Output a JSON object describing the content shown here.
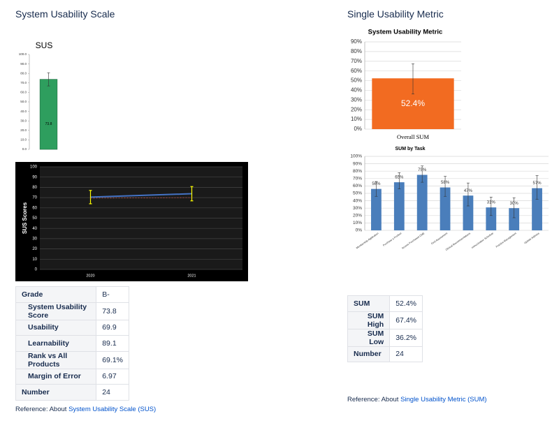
{
  "left": {
    "heading": "System Usability Scale",
    "table": {
      "rows": [
        [
          "Grade",
          "B-"
        ],
        [
          "System Usability Score",
          "73.8"
        ],
        [
          "Usability",
          "69.9"
        ],
        [
          "Learnability",
          "89.1"
        ],
        [
          "Rank vs All Products",
          "69.1%"
        ],
        [
          "Margin of Error",
          "6.97"
        ],
        [
          "Number",
          "24"
        ]
      ]
    },
    "reference": {
      "text": "Reference: About",
      "link": "System Usability Scale (SUS)"
    }
  },
  "right": {
    "heading": "Single Usability Metric",
    "table": {
      "rows": [
        [
          "SUM",
          "52.4%"
        ],
        [
          "SUM High",
          "67.4%"
        ],
        [
          "SUM Low",
          "36.2%"
        ],
        [
          "Number",
          "24"
        ]
      ]
    },
    "reference": {
      "text": "Reference: About",
      "link": "Single Usability Metric (SUM)"
    }
  },
  "chart_data": [
    {
      "type": "bar",
      "title": "SUS",
      "categories": [
        null
      ],
      "values": [
        73.8
      ],
      "errors": [
        6.97
      ],
      "color": "#2e9e5e",
      "ylim": [
        0,
        100
      ],
      "grid": false,
      "yticks": [
        {
          "value": 0,
          "label": "0.0"
        },
        {
          "value": 10,
          "label": "10.0"
        },
        {
          "value": 20,
          "label": "20.0"
        },
        {
          "value": 30,
          "label": "30.0"
        },
        {
          "value": 40,
          "label": "40.0"
        },
        {
          "value": 50,
          "label": "50.0"
        },
        {
          "value": 60,
          "label": "60.0"
        },
        {
          "value": 70,
          "label": "70.0"
        },
        {
          "value": 80,
          "label": "80.0"
        },
        {
          "value": 90,
          "label": "90.0"
        },
        {
          "value": 100,
          "label": "100.0"
        }
      ]
    },
    {
      "type": "line",
      "y_label": "SUS Scores",
      "categories": [
        "2020",
        "2021"
      ],
      "grid": true,
      "ylim": [
        0,
        100
      ],
      "yticks": [
        0,
        10,
        20,
        30,
        40,
        50,
        60,
        70,
        80,
        90,
        100
      ],
      "series": [
        {
          "color": "#4472c4",
          "values": [
            70.5,
            73.8
          ],
          "errors": [
            6.5,
            6.97
          ],
          "error_color": "#ffff00"
        },
        {
          "color": "#c0504d",
          "dash": true,
          "values": [
            69.5,
            70
          ]
        }
      ]
    },
    {
      "type": "bar",
      "title": "System Usability Metric",
      "categories": [
        "Overall SUM"
      ],
      "values": [
        52.4
      ],
      "value_labels": [
        "52.4%"
      ],
      "error_low": [
        36.2
      ],
      "error_high": [
        67.4
      ],
      "color": "#f26b21",
      "ylim": [
        0,
        90
      ],
      "grid": true,
      "yticks": [
        {
          "value": 0,
          "label": "0%"
        },
        {
          "value": 10,
          "label": "10%"
        },
        {
          "value": 20,
          "label": "20%"
        },
        {
          "value": 30,
          "label": "30%"
        },
        {
          "value": 40,
          "label": "40%"
        },
        {
          "value": 50,
          "label": "50%"
        },
        {
          "value": 60,
          "label": "60%"
        },
        {
          "value": 70,
          "label": "70%"
        },
        {
          "value": 80,
          "label": "80%"
        },
        {
          "value": 90,
          "label": "90%"
        }
      ]
    },
    {
      "type": "bar",
      "title": "SUM by Task",
      "categories": [
        "Membership Application",
        "Purchase a Product",
        "Access Purchased CME",
        "Find Assessment",
        "Clinical Recommendations",
        "Immunization Schedule",
        "Practice Management",
        "Update Address"
      ],
      "values": [
        56,
        65,
        75,
        58,
        47,
        31,
        30,
        57
      ],
      "value_labels": [
        "56%",
        "65%",
        "75%",
        "58%",
        "47%",
        "31%",
        "30%",
        "57%"
      ],
      "error_low": [
        46,
        56,
        65,
        46,
        33,
        20,
        17,
        42
      ],
      "error_high": [
        66,
        78,
        87,
        73,
        64,
        45,
        44,
        74
      ],
      "color": "#4a7ebb",
      "ylim": [
        0,
        100
      ],
      "grid": true,
      "yticks": [
        {
          "value": 0,
          "label": "0%"
        },
        {
          "value": 10,
          "label": "10%"
        },
        {
          "value": 20,
          "label": "20%"
        },
        {
          "value": 30,
          "label": "30%"
        },
        {
          "value": 40,
          "label": "40%"
        },
        {
          "value": 50,
          "label": "50%"
        },
        {
          "value": 60,
          "label": "60%"
        },
        {
          "value": 70,
          "label": "70%"
        },
        {
          "value": 80,
          "label": "80%"
        },
        {
          "value": 90,
          "label": "90%"
        },
        {
          "value": 100,
          "label": "100%"
        }
      ]
    }
  ]
}
